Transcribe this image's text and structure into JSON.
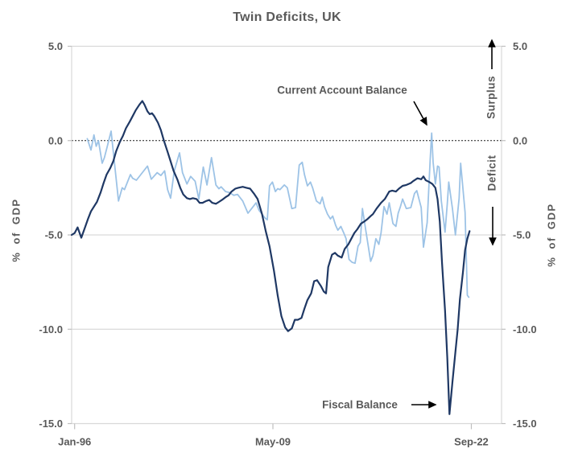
{
  "title": "Twin Deficits, UK",
  "axis": {
    "left_label": "% of GDP",
    "right_label": "% of GDP"
  },
  "annotations": {
    "current_account_label": "Current Account Balance",
    "fiscal_label": "Fiscal Balance",
    "surplus_label": "Surplus",
    "deficit_label": "Deficit"
  },
  "colors": {
    "fiscal_line": "#1f3864",
    "current_account_line": "#9dc3e6",
    "grid": "#d9d9d9",
    "tick": "#bfbfbf",
    "text": "#595959",
    "zero_line": "#1a1a1a",
    "arrow": "#000000"
  },
  "chart_data": {
    "type": "line",
    "title": "Twin Deficits, UK",
    "ylabel": "% of GDP",
    "x_domain": [
      1995.8,
      2024.7
    ],
    "y_domain": [
      -15,
      5
    ],
    "y_ticks": [
      5,
      0,
      -5,
      -10,
      -15
    ],
    "y_tick_labels": [
      "5.0",
      "0.0",
      "-5.0",
      "-10.0",
      "-15.0"
    ],
    "grid_values": [
      5,
      -5,
      -10,
      -15
    ],
    "zero_line_value": 0,
    "x_ticks": [
      {
        "label": "Jan-96",
        "x": 1996.0
      },
      {
        "label": "May-09",
        "x": 2009.33
      },
      {
        "label": "Sep-22",
        "x": 2022.67
      }
    ],
    "legend_position": "in-plot annotations with arrows",
    "grid": "horizontal only",
    "series": [
      {
        "name": "Fiscal Balance",
        "color_key": "fiscal_line",
        "points": [
          [
            1995.8,
            -5.0
          ],
          [
            1996.0,
            -4.9
          ],
          [
            1996.2,
            -4.6
          ],
          [
            1996.45,
            -5.15
          ],
          [
            1996.7,
            -4.6
          ],
          [
            1996.9,
            -4.15
          ],
          [
            1997.1,
            -3.75
          ],
          [
            1997.3,
            -3.5
          ],
          [
            1997.5,
            -3.25
          ],
          [
            1997.75,
            -2.75
          ],
          [
            1997.95,
            -2.25
          ],
          [
            1998.15,
            -1.8
          ],
          [
            1998.4,
            -1.45
          ],
          [
            1998.6,
            -1.1
          ],
          [
            1998.8,
            -0.55
          ],
          [
            1999.05,
            -0.05
          ],
          [
            1999.25,
            0.25
          ],
          [
            1999.45,
            0.65
          ],
          [
            1999.7,
            1.0
          ],
          [
            1999.9,
            1.3
          ],
          [
            2000.1,
            1.6
          ],
          [
            2000.35,
            1.9
          ],
          [
            2000.55,
            2.1
          ],
          [
            2000.7,
            1.9
          ],
          [
            2000.9,
            1.55
          ],
          [
            2001.05,
            1.4
          ],
          [
            2001.2,
            1.45
          ],
          [
            2001.35,
            1.3
          ],
          [
            2001.6,
            0.95
          ],
          [
            2001.8,
            0.55
          ],
          [
            2002.0,
            0.0
          ],
          [
            2002.25,
            -0.6
          ],
          [
            2002.45,
            -1.1
          ],
          [
            2002.65,
            -1.6
          ],
          [
            2002.9,
            -2.05
          ],
          [
            2003.1,
            -2.5
          ],
          [
            2003.3,
            -2.85
          ],
          [
            2003.55,
            -3.05
          ],
          [
            2003.75,
            -3.1
          ],
          [
            2003.95,
            -3.05
          ],
          [
            2004.2,
            -3.1
          ],
          [
            2004.4,
            -3.3
          ],
          [
            2004.6,
            -3.3
          ],
          [
            2004.85,
            -3.2
          ],
          [
            2005.05,
            -3.15
          ],
          [
            2005.25,
            -3.3
          ],
          [
            2005.5,
            -3.35
          ],
          [
            2005.7,
            -3.25
          ],
          [
            2005.9,
            -3.15
          ],
          [
            2006.15,
            -3.0
          ],
          [
            2006.35,
            -2.9
          ],
          [
            2006.55,
            -2.7
          ],
          [
            2006.8,
            -2.55
          ],
          [
            2007.0,
            -2.5
          ],
          [
            2007.3,
            -2.45
          ],
          [
            2007.55,
            -2.5
          ],
          [
            2007.8,
            -2.55
          ],
          [
            2008.05,
            -2.8
          ],
          [
            2008.3,
            -3.1
          ],
          [
            2008.6,
            -3.9
          ],
          [
            2008.85,
            -4.8
          ],
          [
            2009.1,
            -5.6
          ],
          [
            2009.4,
            -6.9
          ],
          [
            2009.65,
            -8.2
          ],
          [
            2009.9,
            -9.3
          ],
          [
            2010.15,
            -9.9
          ],
          [
            2010.35,
            -10.1
          ],
          [
            2010.6,
            -9.95
          ],
          [
            2010.8,
            -9.5
          ],
          [
            2011.0,
            -9.5
          ],
          [
            2011.25,
            -9.4
          ],
          [
            2011.45,
            -8.9
          ],
          [
            2011.65,
            -8.45
          ],
          [
            2011.9,
            -8.1
          ],
          [
            2012.1,
            -7.45
          ],
          [
            2012.3,
            -7.4
          ],
          [
            2012.55,
            -7.7
          ],
          [
            2012.75,
            -8.0
          ],
          [
            2012.9,
            -8.1
          ],
          [
            2013.05,
            -6.7
          ],
          [
            2013.3,
            -6.05
          ],
          [
            2013.5,
            -5.95
          ],
          [
            2013.7,
            -6.1
          ],
          [
            2013.95,
            -6.2
          ],
          [
            2014.15,
            -5.75
          ],
          [
            2014.4,
            -5.5
          ],
          [
            2014.6,
            -5.2
          ],
          [
            2014.8,
            -4.9
          ],
          [
            2015.0,
            -4.7
          ],
          [
            2015.25,
            -4.4
          ],
          [
            2015.45,
            -4.3
          ],
          [
            2015.7,
            -4.15
          ],
          [
            2015.9,
            -4.0
          ],
          [
            2016.05,
            -3.9
          ],
          [
            2016.3,
            -3.6
          ],
          [
            2016.6,
            -3.3
          ],
          [
            2016.85,
            -3.1
          ],
          [
            2017.15,
            -2.7
          ],
          [
            2017.35,
            -2.65
          ],
          [
            2017.6,
            -2.7
          ],
          [
            2017.8,
            -2.55
          ],
          [
            2018.05,
            -2.4
          ],
          [
            2018.3,
            -2.35
          ],
          [
            2018.6,
            -2.25
          ],
          [
            2018.75,
            -2.15
          ],
          [
            2019.05,
            -2.0
          ],
          [
            2019.3,
            -2.05
          ],
          [
            2019.45,
            -1.9
          ],
          [
            2019.6,
            -2.1
          ],
          [
            2019.85,
            -2.2
          ],
          [
            2020.05,
            -2.3
          ],
          [
            2020.25,
            -2.5
          ],
          [
            2020.4,
            -3.1
          ],
          [
            2020.55,
            -4.3
          ],
          [
            2020.7,
            -6.5
          ],
          [
            2020.9,
            -9.0
          ],
          [
            2021.05,
            -11.5
          ],
          [
            2021.2,
            -14.5
          ],
          [
            2021.4,
            -12.8
          ],
          [
            2021.6,
            -11.2
          ],
          [
            2021.75,
            -10.0
          ],
          [
            2021.9,
            -8.4
          ],
          [
            2022.1,
            -7.0
          ],
          [
            2022.25,
            -5.8
          ],
          [
            2022.4,
            -5.2
          ],
          [
            2022.55,
            -4.8
          ]
        ]
      },
      {
        "name": "Current Account Balance",
        "color_key": "current_account_line",
        "points": [
          [
            1996.85,
            0.1
          ],
          [
            1997.1,
            -0.5
          ],
          [
            1997.3,
            0.3
          ],
          [
            1997.45,
            -0.3
          ],
          [
            1997.6,
            0.0
          ],
          [
            1997.85,
            -1.2
          ],
          [
            1998.0,
            -0.9
          ],
          [
            1998.2,
            -0.3
          ],
          [
            1998.45,
            0.5
          ],
          [
            1998.95,
            -3.2
          ],
          [
            1999.2,
            -2.5
          ],
          [
            1999.35,
            -2.6
          ],
          [
            1999.75,
            -1.8
          ],
          [
            1999.9,
            -2.0
          ],
          [
            2000.15,
            -2.1
          ],
          [
            2000.45,
            -1.8
          ],
          [
            2000.9,
            -1.35
          ],
          [
            2001.15,
            -2.05
          ],
          [
            2001.55,
            -1.7
          ],
          [
            2001.8,
            -1.85
          ],
          [
            2002.05,
            -1.6
          ],
          [
            2002.25,
            -2.6
          ],
          [
            2002.45,
            -3.05
          ],
          [
            2002.7,
            -1.6
          ],
          [
            2003.05,
            -0.65
          ],
          [
            2003.25,
            -1.7
          ],
          [
            2003.55,
            -2.3
          ],
          [
            2003.8,
            -1.9
          ],
          [
            2004.1,
            -2.15
          ],
          [
            2004.35,
            -3.1
          ],
          [
            2004.65,
            -1.4
          ],
          [
            2004.9,
            -2.35
          ],
          [
            2005.2,
            -0.9
          ],
          [
            2005.5,
            -2.35
          ],
          [
            2005.7,
            -2.55
          ],
          [
            2005.85,
            -2.45
          ],
          [
            2006.15,
            -2.7
          ],
          [
            2006.4,
            -2.75
          ],
          [
            2006.7,
            -2.9
          ],
          [
            2006.95,
            -2.85
          ],
          [
            2007.3,
            -3.2
          ],
          [
            2007.65,
            -3.85
          ],
          [
            2007.9,
            -3.6
          ],
          [
            2008.2,
            -3.3
          ],
          [
            2008.4,
            -3.7
          ],
          [
            2008.55,
            -3.85
          ],
          [
            2008.8,
            -4.1
          ],
          [
            2008.95,
            -4.2
          ],
          [
            2009.1,
            -2.4
          ],
          [
            2009.3,
            -2.2
          ],
          [
            2009.5,
            -2.7
          ],
          [
            2009.65,
            -2.55
          ],
          [
            2009.8,
            -2.6
          ],
          [
            2010.1,
            -2.35
          ],
          [
            2010.3,
            -2.5
          ],
          [
            2010.6,
            -3.6
          ],
          [
            2010.85,
            -3.55
          ],
          [
            2011.1,
            -1.3
          ],
          [
            2011.3,
            -1.15
          ],
          [
            2011.45,
            -1.8
          ],
          [
            2011.65,
            -2.4
          ],
          [
            2011.85,
            -2.2
          ],
          [
            2012.0,
            -2.5
          ],
          [
            2012.25,
            -3.2
          ],
          [
            2012.5,
            -3.35
          ],
          [
            2012.65,
            -3.0
          ],
          [
            2012.8,
            -3.5
          ],
          [
            2013.0,
            -3.9
          ],
          [
            2013.2,
            -4.15
          ],
          [
            2013.35,
            -4.0
          ],
          [
            2013.55,
            -4.5
          ],
          [
            2013.7,
            -4.75
          ],
          [
            2013.9,
            -4.55
          ],
          [
            2014.1,
            -4.9
          ],
          [
            2014.25,
            -5.2
          ],
          [
            2014.45,
            -6.3
          ],
          [
            2014.65,
            -6.45
          ],
          [
            2014.85,
            -6.5
          ],
          [
            2015.05,
            -5.6
          ],
          [
            2015.2,
            -5.4
          ],
          [
            2015.35,
            -3.6
          ],
          [
            2015.6,
            -4.9
          ],
          [
            2015.9,
            -6.4
          ],
          [
            2016.05,
            -6.1
          ],
          [
            2016.25,
            -5.2
          ],
          [
            2016.45,
            -5.5
          ],
          [
            2016.6,
            -4.9
          ],
          [
            2016.8,
            -3.5
          ],
          [
            2017.0,
            -3.9
          ],
          [
            2017.15,
            -3.3
          ],
          [
            2017.4,
            -4.4
          ],
          [
            2017.6,
            -4.55
          ],
          [
            2017.75,
            -3.85
          ],
          [
            2017.9,
            -3.5
          ],
          [
            2018.05,
            -3.1
          ],
          [
            2018.3,
            -3.6
          ],
          [
            2018.6,
            -3.55
          ],
          [
            2018.85,
            -2.8
          ],
          [
            2019.0,
            -2.65
          ],
          [
            2019.3,
            -3.55
          ],
          [
            2019.45,
            -5.65
          ],
          [
            2019.7,
            -4.35
          ],
          [
            2019.8,
            -2.65
          ],
          [
            2019.9,
            -1.05
          ],
          [
            2020.0,
            0.4
          ],
          [
            2020.1,
            -1.15
          ],
          [
            2020.25,
            -2.3
          ],
          [
            2020.4,
            -1.35
          ],
          [
            2020.5,
            -1.4
          ],
          [
            2020.65,
            -3.2
          ],
          [
            2020.9,
            -4.85
          ],
          [
            2021.05,
            -3.35
          ],
          [
            2021.15,
            -2.2
          ],
          [
            2021.4,
            -3.6
          ],
          [
            2021.6,
            -5.0
          ],
          [
            2021.85,
            -3.05
          ],
          [
            2021.95,
            -1.2
          ],
          [
            2022.25,
            -3.8
          ],
          [
            2022.4,
            -8.2
          ],
          [
            2022.5,
            -8.3
          ]
        ]
      }
    ]
  }
}
